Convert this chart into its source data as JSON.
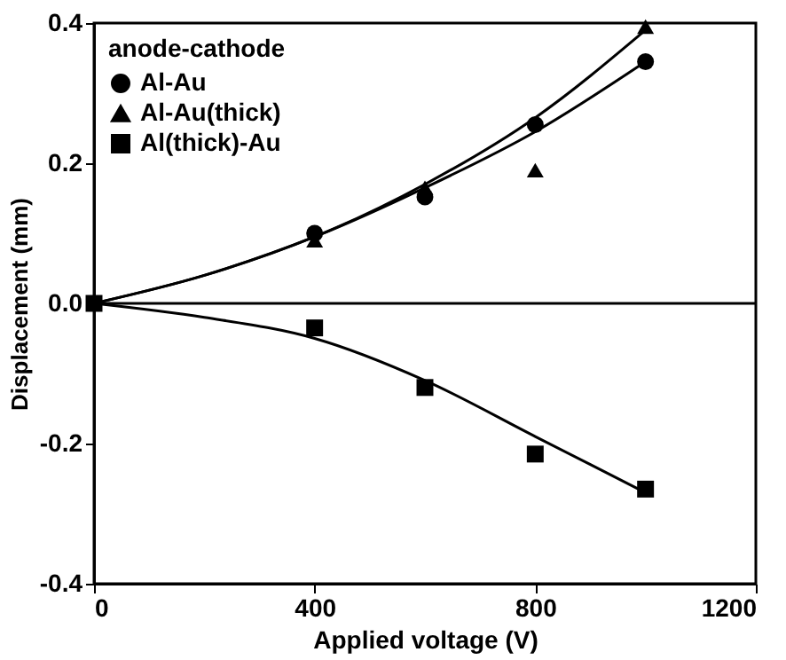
{
  "chart_data": {
    "type": "scatter",
    "xlabel": "Applied voltage (V)",
    "ylabel": "Displacement  (mm)",
    "legend_title": "anode-cathode",
    "legend": "top left",
    "grid": false,
    "xlim": [
      0,
      1200
    ],
    "xticks": [
      0,
      400,
      800,
      1200
    ],
    "ylim": [
      -0.4,
      0.4
    ],
    "yticks": [
      -0.4,
      -0.2,
      {
        "value": 0,
        "label": "0.0"
      },
      0.2,
      0.4
    ],
    "ref_lines": [
      {
        "axis": "y",
        "value": 0,
        "color": "#000000",
        "line_style": "solid"
      }
    ],
    "series": [
      {
        "name": "Al-Au",
        "marker": "circle",
        "color": "#000000",
        "x": [
          400,
          600,
          800,
          1000
        ],
        "values": [
          0.1,
          0.152,
          0.255,
          0.345
        ]
      },
      {
        "name": "Al-Au(thick)",
        "marker": "triangle",
        "color": "#000000",
        "x": [
          400,
          600,
          800,
          1000
        ],
        "values": [
          0.09,
          0.165,
          0.19,
          0.395
        ]
      },
      {
        "name": "Al(thick)-Au",
        "marker": "square",
        "color": "#000000",
        "x": [
          0,
          400,
          600,
          800,
          1000
        ],
        "values": [
          0,
          -0.035,
          -0.12,
          -0.215,
          -0.265
        ]
      },
      {
        "type": "line",
        "marker": "none",
        "line_style": "solid",
        "color": "#000000",
        "x": [
          0,
          200,
          400,
          600,
          800,
          1000
        ],
        "values": [
          0,
          0.04,
          0.095,
          0.165,
          0.245,
          0.345
        ]
      },
      {
        "type": "line",
        "marker": "none",
        "line_style": "solid",
        "color": "#000000",
        "x": [
          0,
          200,
          400,
          600,
          800,
          1000
        ],
        "values": [
          0,
          0.04,
          0.095,
          0.17,
          0.265,
          0.39
        ]
      },
      {
        "type": "line",
        "marker": "none",
        "line_style": "solid",
        "color": "#000000",
        "x": [
          0,
          200,
          400,
          600,
          800,
          1000
        ],
        "values": [
          0,
          -0.02,
          -0.05,
          -0.11,
          -0.19,
          -0.27
        ]
      }
    ]
  }
}
